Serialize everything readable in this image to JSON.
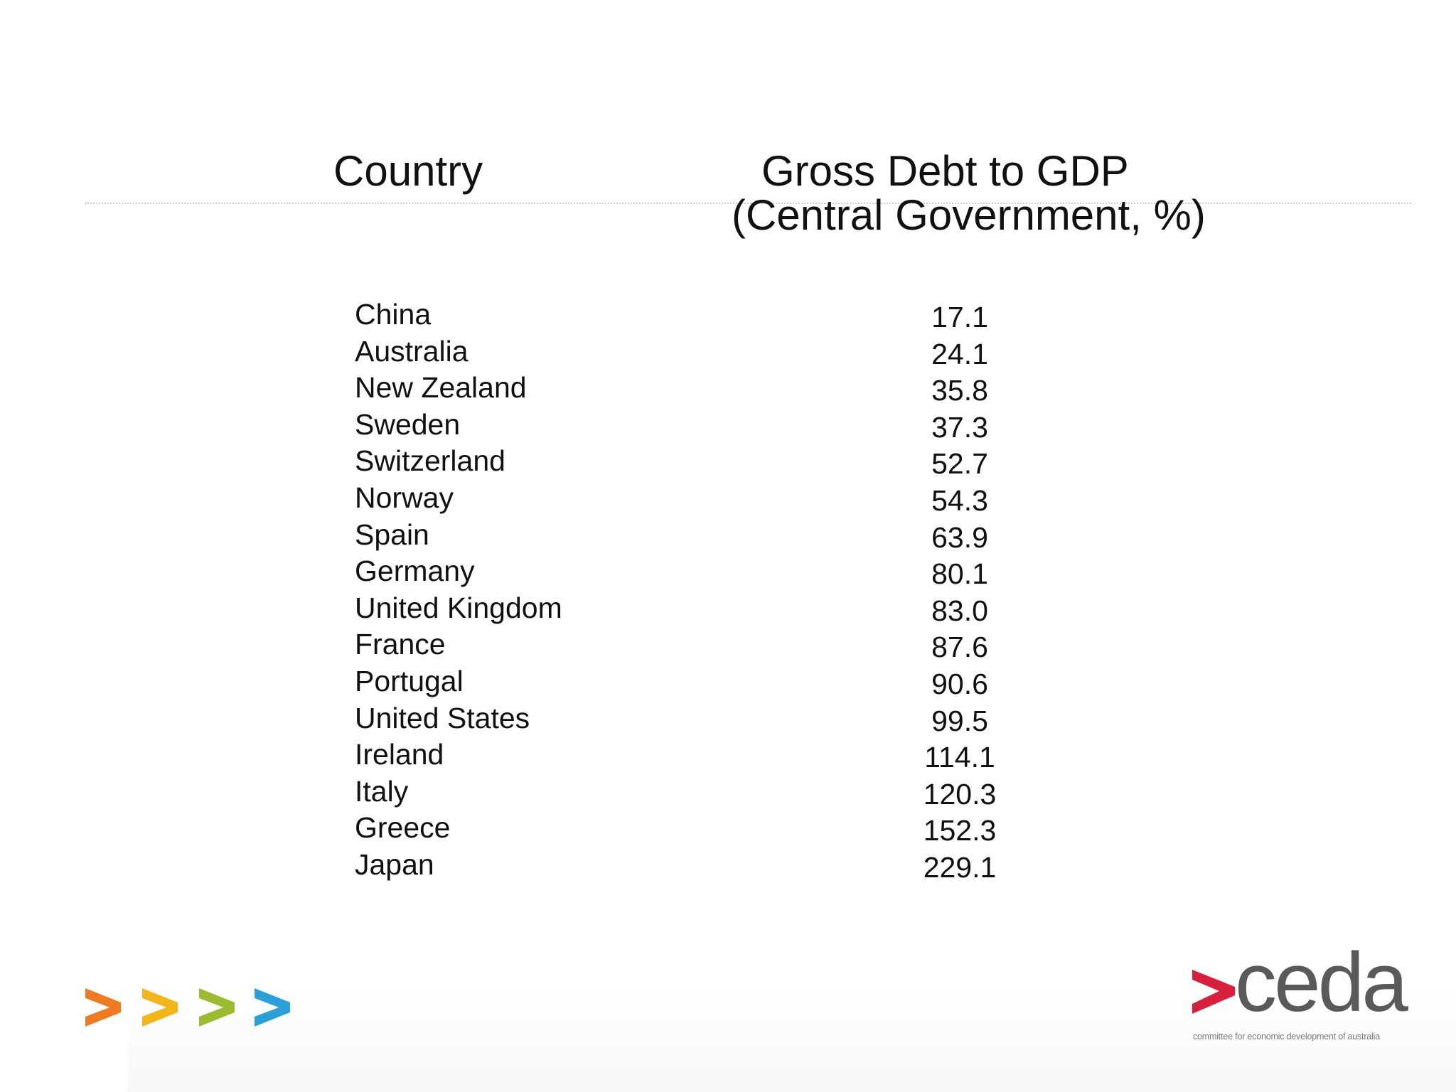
{
  "table": {
    "header_country": "Country",
    "header_value_line1": "Gross Debt to GDP",
    "header_value_line2": "(Central Government, %)",
    "rows": [
      {
        "country": "China",
        "value": "17.1"
      },
      {
        "country": "Australia",
        "value": "24.1"
      },
      {
        "country": "New Zealand",
        "value": "35.8"
      },
      {
        "country": "Sweden",
        "value": "37.3"
      },
      {
        "country": "Switzerland",
        "value": "52.7"
      },
      {
        "country": "Norway",
        "value": "54.3"
      },
      {
        "country": "Spain",
        "value": "63.9"
      },
      {
        "country": "Germany",
        "value": "80.1"
      },
      {
        "country": "United Kingdom",
        "value": "83.0"
      },
      {
        "country": "France",
        "value": "87.6"
      },
      {
        "country": "Portugal",
        "value": "90.6"
      },
      {
        "country": "United States",
        "value": "99.5"
      },
      {
        "country": "Ireland",
        "value": "114.1"
      },
      {
        "country": "Italy",
        "value": "120.3"
      },
      {
        "country": "Greece",
        "value": "152.3"
      },
      {
        "country": "Japan",
        "value": "229.1"
      }
    ]
  },
  "branding": {
    "logo_word": "ceda",
    "logo_tagline": "committee for economic development of australia",
    "chevron_icons": [
      "chevron-right-icon",
      "chevron-right-icon",
      "chevron-right-icon",
      "chevron-right-icon"
    ],
    "chevron_colors": [
      "#ee7a22",
      "#f2b51c",
      "#9cbb30",
      "#2a9fd8"
    ],
    "logo_accent_color": "#d8203c",
    "logo_text_color": "#5a5a5a"
  }
}
